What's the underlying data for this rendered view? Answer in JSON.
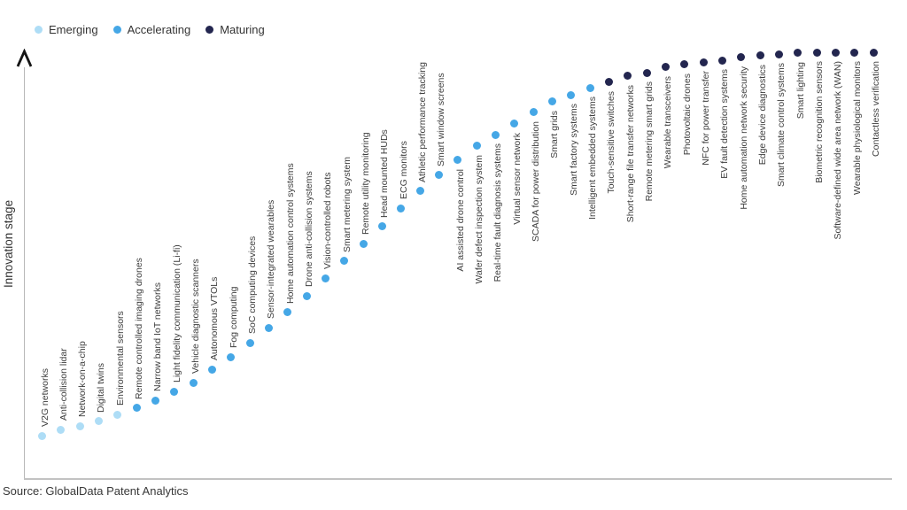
{
  "legend": {
    "items": [
      {
        "label": "Emerging",
        "color": "#aeddf6"
      },
      {
        "label": "Accelerating",
        "color": "#45a7e6"
      },
      {
        "label": "Maturing",
        "color": "#23264f"
      }
    ]
  },
  "axis": {
    "y_label": "Innovation stage"
  },
  "source": "Source: GlobalData Patent Analytics",
  "chart_data": {
    "type": "scatter",
    "title": "",
    "xlabel": "",
    "ylabel": "Innovation stage",
    "x_axis": "technologies ordered by innovation maturity (no tick labels)",
    "y_axis_ticks": "none (qualitative S-curve, arrow pointing up)",
    "grid": false,
    "legend_position": "top-left",
    "stage_colors": {
      "Emerging": "#aeddf6",
      "Accelerating": "#45a7e6",
      "Maturing": "#23264f"
    },
    "value_units": "relative innovation stage, 0-100 (estimated from plot)",
    "points": [
      {
        "label": "V2G networks",
        "stage": "Emerging",
        "value": 10.1
      },
      {
        "label": "Anti-collision lidar",
        "stage": "Emerging",
        "value": 11.6
      },
      {
        "label": "Network-on-a-chip",
        "stage": "Emerging",
        "value": 12.4
      },
      {
        "label": "Digital twins",
        "stage": "Emerging",
        "value": 13.5
      },
      {
        "label": "Environmental sensors",
        "stage": "Emerging",
        "value": 15.1
      },
      {
        "label": "Remote controlled imaging drones",
        "stage": "Accelerating",
        "value": 16.6
      },
      {
        "label": "Narrow band IoT networks",
        "stage": "Accelerating",
        "value": 18.4
      },
      {
        "label": "Light fidelity communication (Li-fi)",
        "stage": "Accelerating",
        "value": 20.5
      },
      {
        "label": "Vehicle diagnostic scanners",
        "stage": "Accelerating",
        "value": 22.6
      },
      {
        "label": "Autonomous VTOLs",
        "stage": "Accelerating",
        "value": 25.7
      },
      {
        "label": "Fog computing",
        "stage": "Accelerating",
        "value": 28.6
      },
      {
        "label": "SoC computing devices",
        "stage": "Accelerating",
        "value": 31.9
      },
      {
        "label": "Sensor-integrated wearables",
        "stage": "Accelerating",
        "value": 35.4
      },
      {
        "label": "Home automation control systems",
        "stage": "Accelerating",
        "value": 39.1
      },
      {
        "label": "Drone anti-collision systems",
        "stage": "Accelerating",
        "value": 42.9
      },
      {
        "label": "Vision-controlled robots",
        "stage": "Accelerating",
        "value": 47.0
      },
      {
        "label": "Smart metering system",
        "stage": "Accelerating",
        "value": 51.1
      },
      {
        "label": "Remote utility monitoring",
        "stage": "Accelerating",
        "value": 55.1
      },
      {
        "label": "Head mounted HUDs",
        "stage": "Accelerating",
        "value": 59.2
      },
      {
        "label": "ECG monitors",
        "stage": "Accelerating",
        "value": 63.4
      },
      {
        "label": "Athletic performance tracking",
        "stage": "Accelerating",
        "value": 67.5
      },
      {
        "label": "Smart window screens",
        "stage": "Accelerating",
        "value": 71.2
      },
      {
        "label": "AI assisted drone control",
        "stage": "Accelerating",
        "value": 74.7
      },
      {
        "label": "Wafer defect inspection system",
        "stage": "Accelerating",
        "value": 78.1
      },
      {
        "label": "Real-time fault diagnosis systems",
        "stage": "Accelerating",
        "value": 80.7
      },
      {
        "label": "Virtual sensor network",
        "stage": "Accelerating",
        "value": 83.2
      },
      {
        "label": "SCADA for power distribution",
        "stage": "Accelerating",
        "value": 85.9
      },
      {
        "label": "Smart grids",
        "stage": "Accelerating",
        "value": 88.4
      },
      {
        "label": "Smart factory systems",
        "stage": "Accelerating",
        "value": 90.0
      },
      {
        "label": "Intelligent embedded systems",
        "stage": "Accelerating",
        "value": 91.7
      },
      {
        "label": "Touch-sensitive switches",
        "stage": "Maturing",
        "value": 93.0
      },
      {
        "label": "Short-range file transfer networks",
        "stage": "Maturing",
        "value": 94.4
      },
      {
        "label": "Remote metering smart grids",
        "stage": "Maturing",
        "value": 95.2
      },
      {
        "label": "Wearable transceivers",
        "stage": "Maturing",
        "value": 96.5
      },
      {
        "label": "Photovoltaic drones",
        "stage": "Maturing",
        "value": 97.1
      },
      {
        "label": "NFC for power transfer",
        "stage": "Maturing",
        "value": 97.7
      },
      {
        "label": "EV fault detection systems",
        "stage": "Maturing",
        "value": 98.1
      },
      {
        "label": "Home automation network security",
        "stage": "Maturing",
        "value": 98.8
      },
      {
        "label": "Edge device diagnostics",
        "stage": "Maturing",
        "value": 99.2
      },
      {
        "label": "Smart climate control systems",
        "stage": "Maturing",
        "value": 99.5
      },
      {
        "label": "Smart lighting",
        "stage": "Maturing",
        "value": 99.8
      },
      {
        "label": "Biometric recognition sensors",
        "stage": "Maturing",
        "value": 99.9
      },
      {
        "label": "Software-defined wide area network (WAN)",
        "stage": "Maturing",
        "value": 100
      },
      {
        "label": "Wearable physiological monitors",
        "stage": "Maturing",
        "value": 100
      },
      {
        "label": "Contactless verification",
        "stage": "Maturing",
        "value": 100
      }
    ]
  }
}
